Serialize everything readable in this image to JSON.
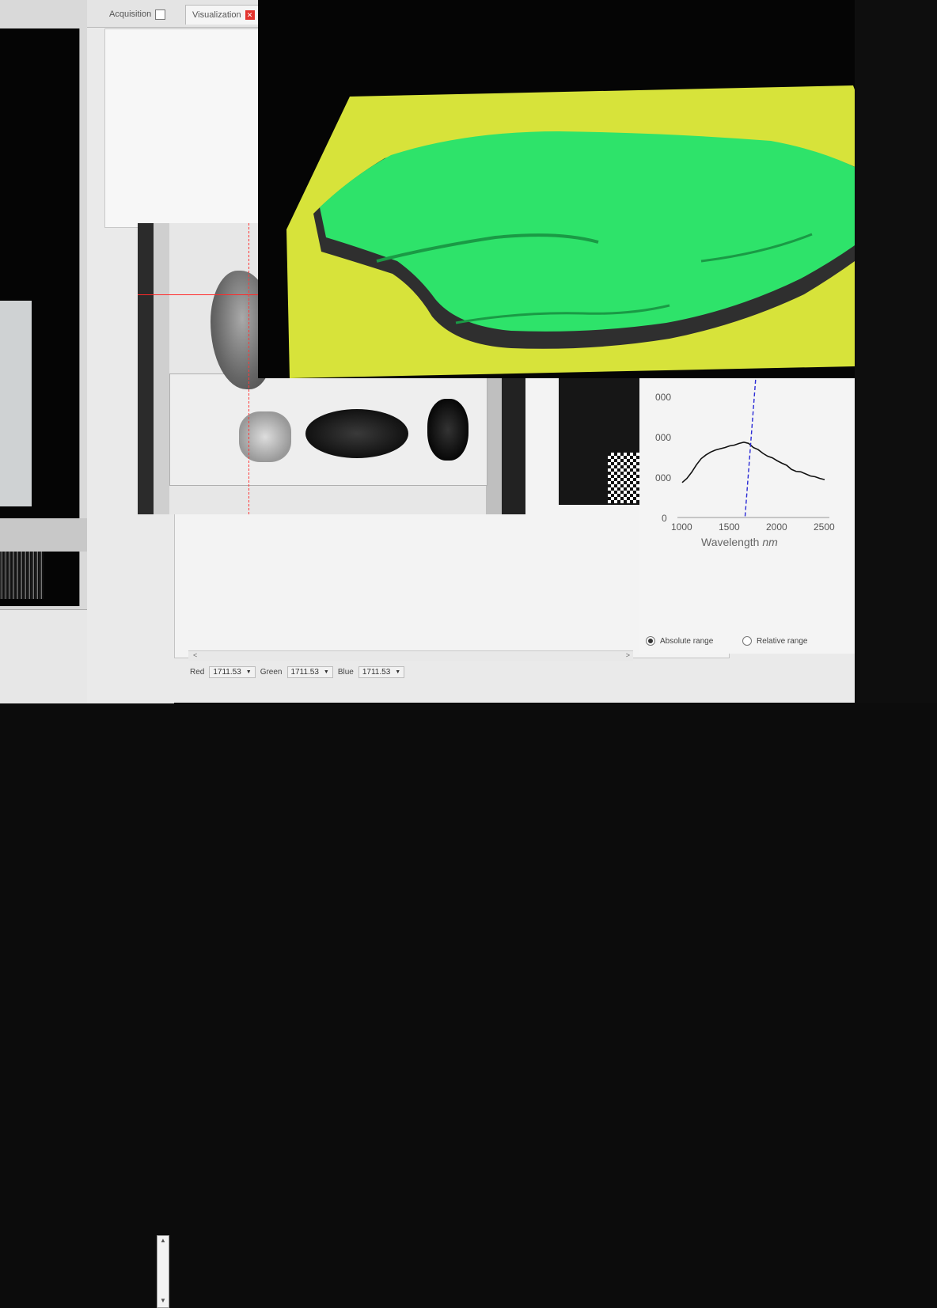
{
  "tabs": [
    {
      "label": "Acquisition",
      "icon": "checkbox-icon"
    },
    {
      "label": "Visualization",
      "icon": "close-icon"
    }
  ],
  "plot": {
    "xlabel_prefix": "Wavelength ",
    "xlabel_unit": "nm",
    "x_ticks": [
      "1000",
      "1500",
      "2000",
      "2500"
    ],
    "y_ticks": [
      "000",
      "000",
      "000",
      "0"
    ]
  },
  "chart_data": {
    "type": "line",
    "xlabel": "Wavelength nm",
    "xlim": [
      950,
      2550
    ],
    "ylim": [
      0,
      3000
    ],
    "x_ticks": [
      1000,
      1500,
      2000,
      2500
    ],
    "marker_x": 1711.53,
    "series": [
      {
        "x": [
          1000,
          1050,
          1100,
          1150,
          1200,
          1250,
          1300,
          1350,
          1400,
          1450,
          1500,
          1550,
          1600,
          1650,
          1700,
          1750,
          1800,
          1850,
          1900,
          1950,
          2000,
          2050,
          2100,
          2150,
          2200,
          2250,
          2300,
          2350,
          2400,
          2450,
          2500
        ],
        "y": [
          850,
          950,
          1100,
          1280,
          1430,
          1520,
          1590,
          1640,
          1670,
          1700,
          1740,
          1760,
          1800,
          1830,
          1800,
          1700,
          1650,
          1560,
          1490,
          1450,
          1380,
          1320,
          1270,
          1170,
          1120,
          1110,
          1060,
          1010,
          990,
          950,
          920
        ]
      }
    ]
  },
  "controls": {
    "absolute_range": "Absolute range",
    "relative_range": "Relative range",
    "red_label": "Red",
    "red_value": "1711.53",
    "green_label": "Green",
    "green_value": "1711.53",
    "blue_label": "Blue",
    "blue_value": "1711.53"
  },
  "colors": {
    "surface_background": "#d7e33a",
    "surface_top": "#2ee36a",
    "marker_line": "#2a2ad6"
  }
}
